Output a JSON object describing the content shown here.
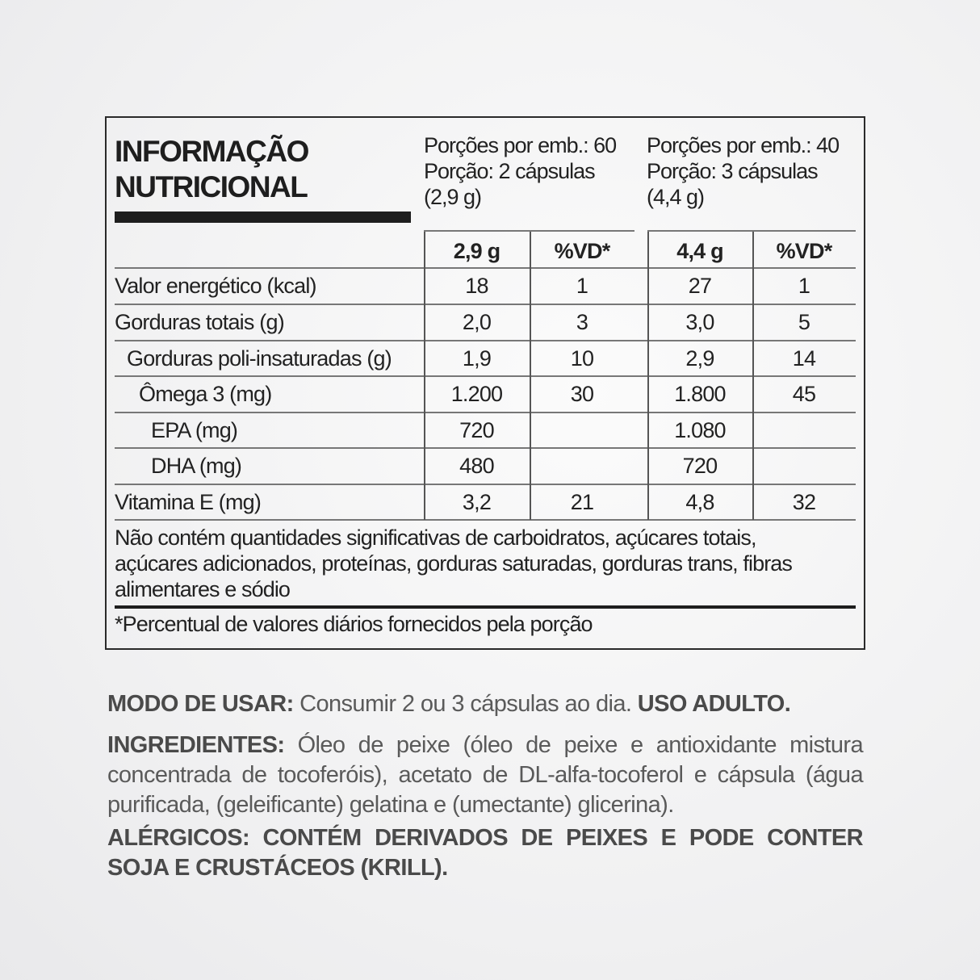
{
  "label": {
    "title_line1": "INFORMAÇÃO",
    "title_line2": "NUTRICIONAL",
    "serving1": {
      "line1": "Porções por emb.: 60",
      "line2": "Porção: 2 cápsulas",
      "line3": "(2,9 g)"
    },
    "serving2": {
      "line1": "Porções por emb.: 40",
      "line2": "Porção: 3 cápsulas",
      "line3": "(4,4 g)"
    },
    "headers": [
      "2,9 g",
      "%VD*",
      "4,4 g",
      "%VD*"
    ],
    "rows": [
      {
        "label": "Valor energético (kcal)",
        "indent": 0,
        "v": [
          "18",
          "1",
          "27",
          "1"
        ]
      },
      {
        "label": "Gorduras totais (g)",
        "indent": 0,
        "v": [
          "2,0",
          "3",
          "3,0",
          "5"
        ]
      },
      {
        "label": "Gorduras poli-insaturadas (g)",
        "indent": 1,
        "v": [
          "1,9",
          "10",
          "2,9",
          "14"
        ]
      },
      {
        "label": "Ômega 3 (mg)",
        "indent": 2,
        "v": [
          "1.200",
          "30",
          "1.800",
          "45"
        ]
      },
      {
        "label": "EPA (mg)",
        "indent": 3,
        "v": [
          "720",
          "",
          "1.080",
          ""
        ]
      },
      {
        "label": "DHA (mg)",
        "indent": 3,
        "v": [
          "480",
          "",
          "720",
          ""
        ]
      },
      {
        "label": "Vitamina E (mg)",
        "indent": 0,
        "v": [
          "3,2",
          "21",
          "4,8",
          "32"
        ]
      }
    ],
    "note": "Não contém quantidades significativas de carboidratos, açúcares totais, açúcares adicionados, proteínas, gorduras saturadas, gorduras trans, fibras alimentares e sódio",
    "footnote": "*Percentual de valores diários fornecidos pela porção"
  },
  "usage": {
    "heading": "MODO DE USAR:",
    "text": " Consumir 2 ou 3 cápsulas ao dia. ",
    "tail": "USO ADULTO."
  },
  "ingredients": {
    "heading": "INGREDIENTES:",
    "text": " Óleo de peixe (óleo de peixe e antioxidante mistura concentrada de tocoferóis), acetato de DL-alfa-tocoferol e cápsula (água purificada, (geleificante) gelatina e (umectante) glicerina)."
  },
  "allergens": {
    "text": "ALÉRGICOS: CONTÉM DERIVADOS DE PEIXES E PODE CONTER SOJA E CRUSTÁCEOS (KRILL)."
  }
}
